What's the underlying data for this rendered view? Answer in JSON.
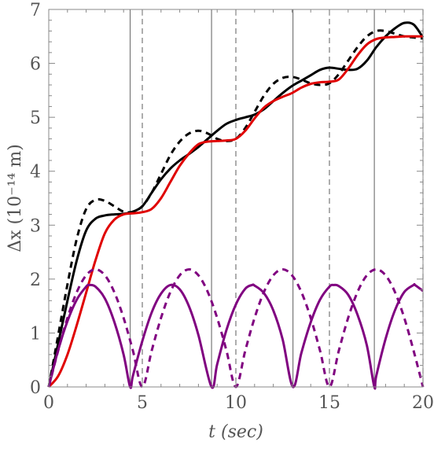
{
  "chart_data": {
    "type": "line",
    "xlabel": "t (sec)",
    "ylabel": "Δx  (10⁻¹⁴ m)",
    "xlim": [
      0,
      20
    ],
    "ylim": [
      0,
      7
    ],
    "x_ticks": [
      "0",
      "5",
      "10",
      "15",
      "20"
    ],
    "y_ticks": [
      "0",
      "1",
      "2",
      "3",
      "4",
      "5",
      "6",
      "7"
    ],
    "grid": false,
    "legend": "none",
    "vertical_lines_solid": [
      4.35,
      8.7,
      13.05,
      17.4
    ],
    "vertical_lines_dashed": [
      5,
      10,
      15,
      20
    ],
    "series": [
      {
        "style": "solid",
        "color": "#000000",
        "x": [
          0,
          0.5,
          1,
          1.5,
          2,
          2.5,
          3,
          3.5,
          4,
          4.5,
          5,
          5.5,
          6,
          6.5,
          7,
          7.5,
          8,
          8.5,
          9,
          9.5,
          10,
          10.5,
          11,
          11.5,
          12,
          12.5,
          13,
          13.5,
          14,
          14.5,
          15,
          15.5,
          16,
          16.5,
          17,
          17.5,
          18,
          18.5,
          19,
          19.5,
          20
        ],
        "y": [
          0,
          0.8,
          1.6,
          2.35,
          2.9,
          3.12,
          3.18,
          3.2,
          3.21,
          3.25,
          3.35,
          3.6,
          3.85,
          4.05,
          4.2,
          4.32,
          4.45,
          4.6,
          4.75,
          4.88,
          4.95,
          5.0,
          5.05,
          5.15,
          5.3,
          5.45,
          5.58,
          5.68,
          5.78,
          5.88,
          5.92,
          5.9,
          5.88,
          5.9,
          6.05,
          6.3,
          6.5,
          6.65,
          6.75,
          6.72,
          6.48
        ]
      },
      {
        "style": "dashed",
        "color": "#000000",
        "x": [
          0,
          0.5,
          1,
          1.5,
          2,
          2.5,
          3,
          3.5,
          4,
          4.5,
          5,
          5.5,
          6,
          6.5,
          7,
          7.5,
          8,
          8.5,
          9,
          9.5,
          10,
          10.5,
          11,
          11.5,
          12,
          12.5,
          13,
          13.5,
          14,
          14.5,
          15,
          15.5,
          16,
          16.5,
          17,
          17.5,
          18,
          18.5,
          19,
          19.5,
          20
        ],
        "y": [
          0,
          0.95,
          1.9,
          2.75,
          3.3,
          3.47,
          3.45,
          3.35,
          3.25,
          3.25,
          3.35,
          3.6,
          3.95,
          4.3,
          4.55,
          4.7,
          4.75,
          4.7,
          4.6,
          4.56,
          4.6,
          4.8,
          5.1,
          5.4,
          5.62,
          5.73,
          5.75,
          5.7,
          5.63,
          5.6,
          5.63,
          5.8,
          6.05,
          6.3,
          6.5,
          6.6,
          6.6,
          6.55,
          6.5,
          6.48,
          6.46
        ]
      },
      {
        "style": "solid",
        "color": "#e00000",
        "x": [
          0,
          0.5,
          1,
          1.5,
          2,
          2.5,
          3,
          3.5,
          4,
          4.5,
          5,
          5.5,
          6,
          6.5,
          7,
          7.5,
          8,
          8.5,
          9,
          9.5,
          10,
          10.5,
          11,
          11.5,
          12,
          12.5,
          13,
          13.5,
          14,
          14.5,
          15,
          15.5,
          16,
          16.5,
          17,
          17.5,
          18,
          18.5,
          19,
          19.5,
          20
        ],
        "y": [
          0,
          0.2,
          0.6,
          1.15,
          1.75,
          2.35,
          2.85,
          3.1,
          3.2,
          3.22,
          3.24,
          3.3,
          3.5,
          3.8,
          4.1,
          4.33,
          4.5,
          4.55,
          4.56,
          4.57,
          4.6,
          4.75,
          4.98,
          5.18,
          5.3,
          5.38,
          5.45,
          5.55,
          5.62,
          5.65,
          5.66,
          5.7,
          5.9,
          6.15,
          6.35,
          6.45,
          6.48,
          6.49,
          6.5,
          6.5,
          6.5
        ]
      },
      {
        "style": "solid",
        "color": "#800080",
        "x": [
          0,
          0.5,
          1,
          1.5,
          2,
          2.17,
          2.5,
          3,
          3.5,
          4,
          4.35,
          4.5,
          5,
          5.5,
          6,
          6.5,
          7,
          7.5,
          8,
          8.7,
          9,
          9.5,
          10,
          10.5,
          10.87,
          11,
          11.5,
          12,
          12.5,
          13.05,
          13.5,
          14,
          14.5,
          15,
          15.22,
          15.5,
          16,
          16.5,
          17,
          17.4,
          17.5,
          18,
          18.5,
          19,
          19.5,
          19.57,
          20
        ],
        "y": [
          0,
          0.68,
          1.22,
          1.62,
          1.86,
          1.89,
          1.86,
          1.64,
          1.21,
          0.6,
          0,
          0.21,
          0.85,
          1.38,
          1.73,
          1.89,
          1.81,
          1.49,
          0.96,
          0,
          0.42,
          1.06,
          1.53,
          1.82,
          1.89,
          1.88,
          1.74,
          1.42,
          0.88,
          0,
          0.63,
          1.2,
          1.62,
          1.86,
          1.89,
          1.87,
          1.71,
          1.34,
          0.77,
          0,
          0.2,
          0.89,
          1.42,
          1.76,
          1.89,
          1.89,
          1.78
        ]
      },
      {
        "style": "dashed",
        "color": "#800080",
        "x": [
          0,
          0.5,
          1,
          1.5,
          2,
          2.5,
          3,
          3.5,
          4,
          4.5,
          5,
          5.5,
          6,
          6.5,
          7,
          7.5,
          8,
          8.5,
          9,
          9.5,
          10,
          10.5,
          11,
          11.5,
          12,
          12.5,
          13,
          13.5,
          14,
          14.5,
          15,
          15.5,
          16,
          16.5,
          17,
          17.5,
          18,
          18.5,
          19,
          19.5,
          20
        ],
        "y": [
          0,
          0.67,
          1.28,
          1.76,
          2.07,
          2.18,
          2.07,
          1.76,
          1.28,
          0.67,
          0,
          0.67,
          1.28,
          1.76,
          2.07,
          2.18,
          2.07,
          1.76,
          1.28,
          0.67,
          0,
          0.67,
          1.28,
          1.76,
          2.07,
          2.18,
          2.07,
          1.76,
          1.28,
          0.67,
          0,
          0.67,
          1.28,
          1.76,
          2.07,
          2.18,
          2.07,
          1.76,
          1.28,
          0.67,
          0
        ]
      }
    ]
  }
}
